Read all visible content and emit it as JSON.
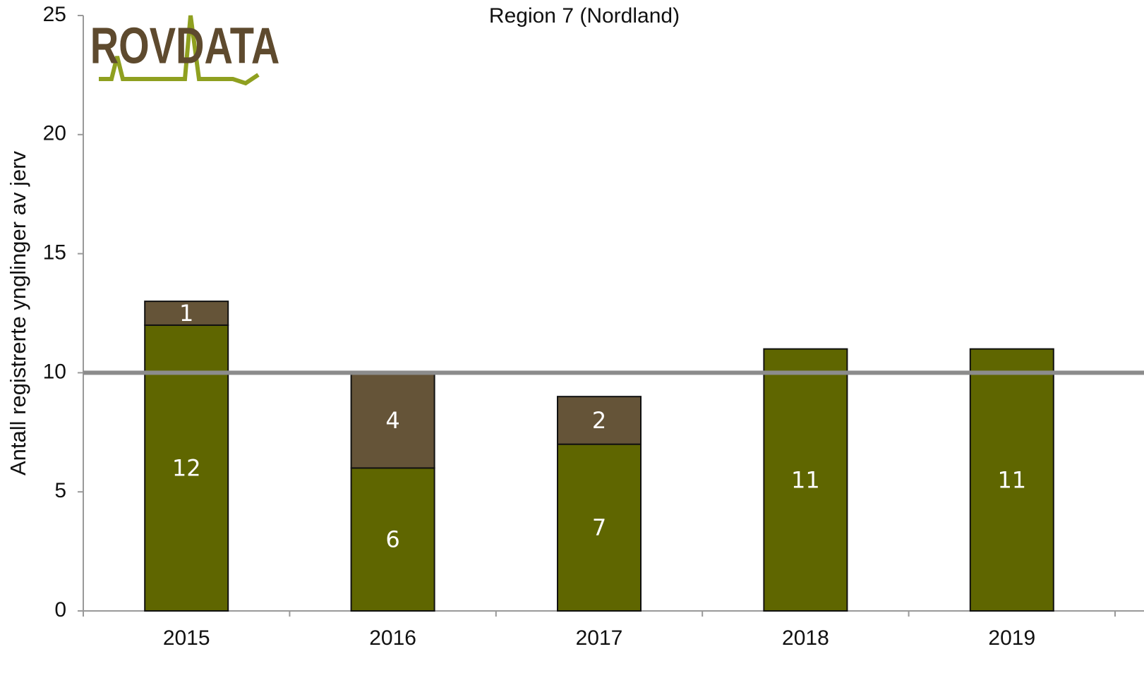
{
  "chart_data": {
    "type": "stacked_bar",
    "title": "Region 7 (Nordland)",
    "y_label": "Antall registrerte ynglinger av jerv",
    "logo": "ROVDATA",
    "categories": [
      "2015",
      "2016",
      "2017",
      "2018",
      "2019"
    ],
    "series": [
      {
        "color": "#5f6600",
        "values": [
          12,
          6,
          7,
          11,
          11
        ]
      },
      {
        "color": "#655438",
        "values": [
          1,
          4,
          2,
          null,
          null
        ]
      }
    ],
    "reference_line": 10,
    "reference_color": "#8c8c8c",
    "ylim": [
      0,
      25
    ],
    "yticks": [
      0,
      5,
      10,
      15,
      20,
      25
    ]
  }
}
